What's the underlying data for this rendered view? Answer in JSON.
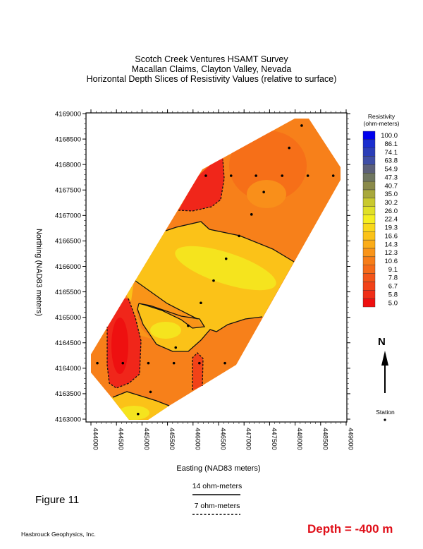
{
  "title": {
    "line1": "Scotch Creek Ventures HSAMT Survey",
    "line2": "Macallan Claims, Clayton Valley, Nevada",
    "line3": "Horizontal Depth Slices of Resistivity Values (relative to surface)"
  },
  "axes": {
    "xlabel": "Easting (NAD83 meters)",
    "ylabel": "Northing (NAD83 meters)",
    "xticks": [
      "444000",
      "444500",
      "445000",
      "445500",
      "446000",
      "446500",
      "447000",
      "447500",
      "448000",
      "448500",
      "449000"
    ],
    "yticks": [
      "4169000",
      "4168500",
      "4168000",
      "4167500",
      "4167000",
      "4166500",
      "4166000",
      "4165500",
      "4165000",
      "4164500",
      "4164000",
      "4163500",
      "4163000"
    ],
    "xlim": [
      444000,
      449000
    ],
    "ylim": [
      4163000,
      4169000
    ]
  },
  "colorbar": {
    "title1": "Resistivity",
    "title2": "(ohm-meters)",
    "labels": [
      "100.0",
      "86.1",
      "74.1",
      "63.8",
      "54.9",
      "47.3",
      "40.7",
      "35.0",
      "30.2",
      "26.0",
      "22.4",
      "19.3",
      "16.6",
      "14.3",
      "12.3",
      "10.6",
      "9.1",
      "7.8",
      "6.7",
      "5.8",
      "5.0"
    ],
    "colors": [
      "#0000ee",
      "#1a2ecf",
      "#2b3eb8",
      "#3f4ea5",
      "#5c6078",
      "#6f7660",
      "#8a8a4a",
      "#a8a83c",
      "#c9c92e",
      "#e0e028",
      "#f5ee20",
      "#f9d81a",
      "#fbc218",
      "#fbac18",
      "#f99418",
      "#f77d18",
      "#f56a18",
      "#f35518",
      "#f24218",
      "#f02e18",
      "#ee1010"
    ]
  },
  "stations": [
    [
      444125,
      4164100
    ],
    [
      444625,
      4164100
    ],
    [
      445125,
      4164100
    ],
    [
      445625,
      4164100
    ],
    [
      446125,
      4164100
    ],
    [
      446625,
      4164100
    ],
    [
      445167,
      4163535
    ],
    [
      444923,
      4163101
    ],
    [
      445661,
      4164406
    ],
    [
      445905,
      4164835
    ],
    [
      446154,
      4165283
    ],
    [
      446403,
      4165721
    ],
    [
      446648,
      4166150
    ],
    [
      446902,
      4166597
    ],
    [
      447146,
      4167021
    ],
    [
      447386,
      4167460
    ],
    [
      446251,
      4167780
    ],
    [
      446745,
      4167780
    ],
    [
      447234,
      4167780
    ],
    [
      447746,
      4167780
    ],
    [
      448249,
      4167780
    ],
    [
      448747,
      4167780
    ],
    [
      447884,
      4168327
    ],
    [
      448129,
      4168765
    ]
  ],
  "contours": {
    "solid_label": "14 ohm-meters",
    "dashed_label": "7 ohm-meters"
  },
  "north_label": "N",
  "station_label": "Station",
  "figure_label": "Figure 11",
  "credit": "Hasbrouck Geophysics, Inc.",
  "depth": "Depth = -400 m"
}
